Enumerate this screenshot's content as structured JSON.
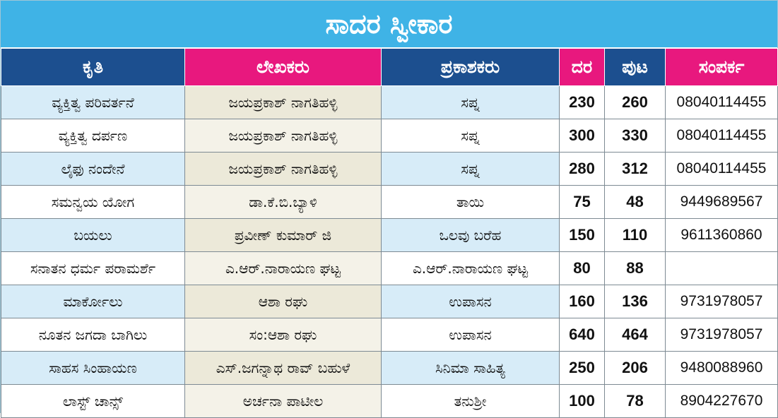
{
  "title": "ಸಾದರ ಸ್ವೀಕಾರ",
  "colors": {
    "title_bg": "#3fb3e6",
    "header_navy": "#1c4f8f",
    "header_pink": "#e8187e",
    "row_tint": "#d7ecf8",
    "author_tint": "#ece9d9"
  },
  "headers": [
    "ಕೃತಿ",
    "ಲೇಖಕರು",
    "ಪ್ರಕಾಶಕರು",
    "ದರ",
    "ಪುಟ",
    "ಸಂಪರ್ಕ"
  ],
  "rows": [
    {
      "book": "ವ್ಯಕ್ತಿತ್ವ ಪರಿವರ್ತನೆ",
      "author": "ಜಯಪ್ರಕಾಶ್ ನಾಗತಿಹಳ್ಳಿ",
      "publisher": "ಸಪ್ನ",
      "price": "230",
      "pages": "260",
      "contact": "08040114455"
    },
    {
      "book": "ವ್ಯಕ್ತಿತ್ವ ದರ್ಪಣ",
      "author": "ಜಯಪ್ರಕಾಶ್ ನಾಗತಿಹಳ್ಳಿ",
      "publisher": "ಸಪ್ನ",
      "price": "300",
      "pages": "330",
      "contact": "08040114455"
    },
    {
      "book": "ಲೈಫು ನಂದೇನೆ",
      "author": "ಜಯಪ್ರಕಾಶ್ ನಾಗತಿಹಳ್ಳಿ",
      "publisher": "ಸಪ್ನ",
      "price": "280",
      "pages": "312",
      "contact": "08040114455"
    },
    {
      "book": "ಸಮನ್ವಯ ಯೋಗ",
      "author": "ಡಾ.ಕೆ.ಬಿ.ಬ್ಯಾಳಿ",
      "publisher": "ತಾಯಿ",
      "price": "75",
      "pages": "48",
      "contact": "9449689567"
    },
    {
      "book": "ಬಯಲು",
      "author": "ಪ್ರವೀಣ್ ಕುಮಾರ್ ಜಿ",
      "publisher": "ಒಲವು ಬರೆಹ",
      "price": "150",
      "pages": "110",
      "contact": "9611360860"
    },
    {
      "book": "ಸನಾತನ ಧರ್ಮ ಪರಾಮರ್ಶೆ",
      "author": "ಎ.ಆರ್.ನಾರಾಯಣ ಘಟ್ಟ",
      "publisher": "ಎ.ಆರ್.ನಾರಾಯಣ ಘಟ್ಟ",
      "price": "80",
      "pages": "88",
      "contact": ""
    },
    {
      "book": "ಮಾರ್ಕೋಲು",
      "author": "ಆಶಾ ರಘು",
      "publisher": "ಉಪಾಸನ",
      "price": "160",
      "pages": "136",
      "contact": "9731978057"
    },
    {
      "book": "ನೂತನ ಜಗದಾ ಬಾಗಿಲು",
      "author": "ಸಂ:ಆಶಾ ರಘು",
      "publisher": "ಉಪಾಸನ",
      "price": "640",
      "pages": "464",
      "contact": "9731978057"
    },
    {
      "book": "ಸಾಹಸ ಸಿಂಹಾಯಣ",
      "author": "ಎಸ್.ಜಗನ್ನಾಥ ರಾವ್ ಬಹುಳೆ",
      "publisher": "ಸಿನಿಮಾ ಸಾಹಿತ್ಯ",
      "price": "250",
      "pages": "206",
      "contact": "9480088960"
    },
    {
      "book": "ಲಾಸ್ಟ್ ಚಾನ್ಸ್",
      "author": "ಅರ್ಚನಾ ಪಾಟೀಲ",
      "publisher": "ತನುಶ್ರೀ",
      "price": "100",
      "pages": "78",
      "contact": "8904227670"
    }
  ]
}
